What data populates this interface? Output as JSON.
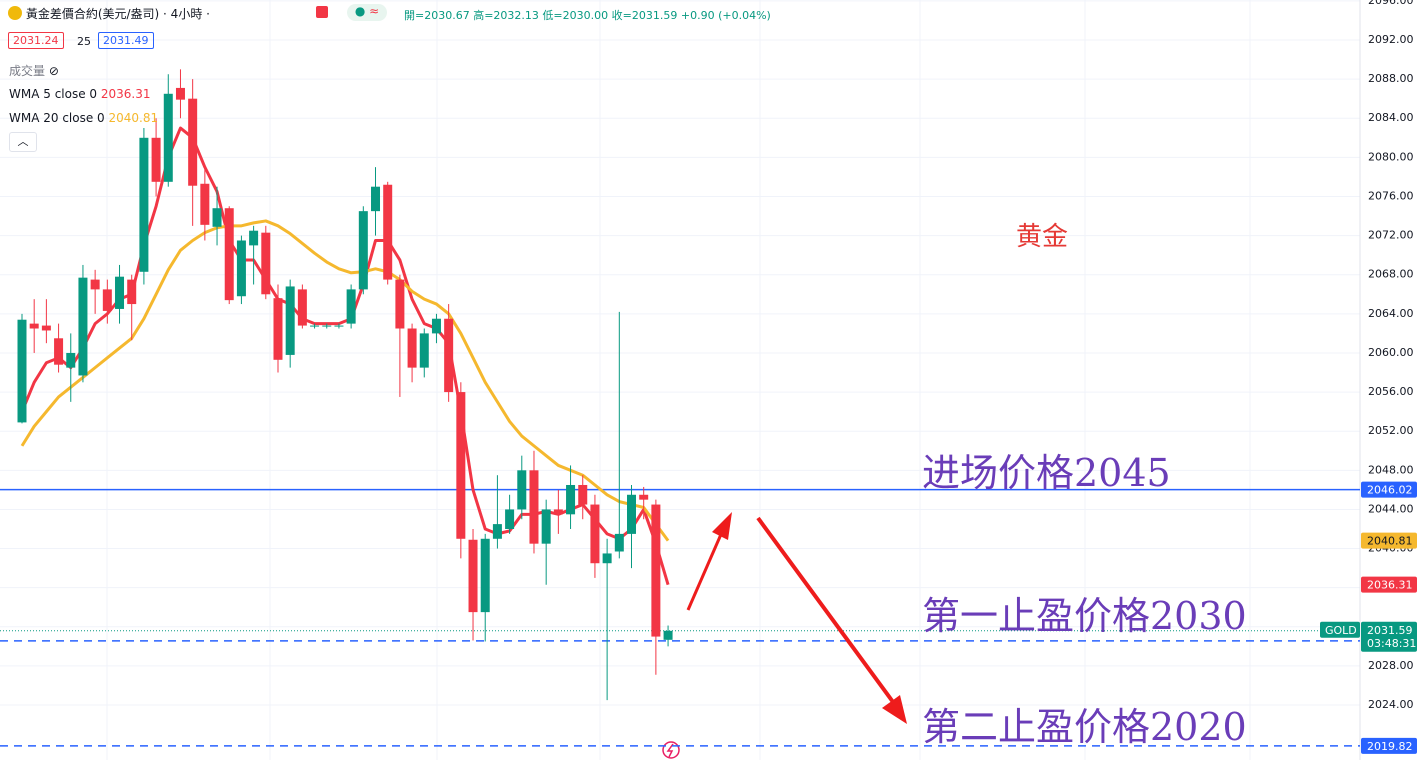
{
  "header": {
    "symbol": "黃金差價合約(美元/盎司) · 4小時 ·",
    "ohlc": [
      "開=2030.67",
      "高=2032.13",
      "低=2030.00",
      "收=2031.59",
      "+0.90 (+0.04%)"
    ],
    "bid": "2031.24",
    "spread": "25",
    "ask": "2031.49",
    "volume": "成交量"
  },
  "chart_data": {
    "type": "candlestick",
    "open": [
      2052.9,
      2063,
      2062.8,
      2061.5,
      2058.5,
      2057.7,
      2067.5,
      2066.5,
      2064.5,
      2067.5,
      2068.3,
      2082,
      2077.5,
      2087.1,
      2086,
      2077.3,
      2072.9,
      2074.8,
      2065.8,
      2071,
      2072.3,
      2065.6,
      2059.8,
      2066.5,
      2062.8,
      2062.8,
      2062.8,
      2063,
      2066.5,
      2074.5,
      2077.2,
      2067.5,
      2062.5,
      2058.5,
      2062,
      2063.5,
      2056,
      2040.9,
      2033.5,
      2041,
      2042,
      2044,
      2048,
      2040.5,
      2044,
      2043.5,
      2046.5,
      2044.5,
      2038.5,
      2039.7,
      2041.5,
      2045.5,
      2044.5,
      2030.67
    ],
    "high": [
      2064,
      2065.5,
      2065.5,
      2063,
      2062,
      2069,
      2068.5,
      2067.5,
      2069,
      2068,
      2083,
      2084,
      2088.5,
      2089,
      2088,
      2079,
      2077,
      2075,
      2072,
      2073,
      2073,
      2067,
      2067.5,
      2067,
      2063,
      2063,
      2063,
      2067,
      2075,
      2079,
      2077.5,
      2068,
      2063,
      2062.5,
      2064,
      2065,
      2057,
      2042,
      2041.5,
      2047.5,
      2045.5,
      2049.5,
      2050,
      2045,
      2046,
      2048.5,
      2047.5,
      2045.5,
      2041,
      2064.2,
      2046.5,
      2046.3,
      2045,
      2032.13
    ],
    "low": [
      2052.8,
      2060,
      2061,
      2058,
      2055,
      2057,
      2064,
      2063,
      2063,
      2061.3,
      2067,
      2076,
      2077,
      2084,
      2073,
      2071.5,
      2071,
      2065,
      2065,
      2067,
      2065.5,
      2058,
      2058.5,
      2062.5,
      2062.5,
      2062.5,
      2062.5,
      2062.5,
      2066,
      2072,
      2067,
      2055.5,
      2057,
      2057.5,
      2061,
      2055,
      2039,
      2030.6,
      2030.5,
      2040,
      2041.5,
      2043,
      2039.5,
      2036.3,
      2041.5,
      2042,
      2043,
      2037,
      2024.5,
      2039,
      2038,
      2043,
      2027.1,
      2030
    ],
    "close": [
      2063.4,
      2062.5,
      2062.3,
      2058.8,
      2060,
      2067.7,
      2066.5,
      2064.3,
      2067.8,
      2065,
      2082,
      2077.5,
      2086.5,
      2085.9,
      2077.1,
      2073.1,
      2074.8,
      2065.4,
      2071.5,
      2072.5,
      2066,
      2059.3,
      2066.8,
      2062.8,
      2062.8,
      2062.8,
      2062.8,
      2066.5,
      2074.5,
      2077,
      2067.5,
      2062.5,
      2058.5,
      2062,
      2063.5,
      2056,
      2041,
      2033.5,
      2041,
      2042.5,
      2044,
      2048,
      2040.5,
      2044,
      2043.5,
      2046.5,
      2044.5,
      2038.5,
      2039.5,
      2041.5,
      2045.5,
      2045,
      2031,
      2031.59
    ],
    "up_color": "#089981",
    "down_color": "#f23645",
    "lines": [
      {
        "name": "WMA 5 close 0",
        "color": "#f23645",
        "values": [
          2054,
          2057,
          2059,
          2059.5,
          2058.5,
          2060.5,
          2063,
          2064,
          2065.5,
          2066,
          2071,
          2075,
          2080,
          2083,
          2082,
          2079,
          2076.5,
          2071.5,
          2069.5,
          2069.5,
          2067.5,
          2065.5,
          2065,
          2063.5,
          2063,
          2063,
          2063,
          2063.5,
          2067,
          2071.5,
          2071.5,
          2069.5,
          2065.5,
          2063,
          2062.5,
          2061,
          2054,
          2046,
          2042,
          2041.5,
          2041.8,
          2043.5,
          2043.5,
          2043.8,
          2043.5,
          2044,
          2044.5,
          2043,
          2041.5,
          2041,
          2042,
          2044,
          2040.5,
          2036.31
        ]
      },
      {
        "name": "WMA 20 close 0",
        "color": "#f5b82e",
        "values": [
          2050.5,
          2052.5,
          2054,
          2055.5,
          2056.5,
          2057.5,
          2058.5,
          2059.5,
          2060.5,
          2061.5,
          2063.5,
          2066,
          2068.5,
          2070.5,
          2071.5,
          2072.3,
          2072.8,
          2073,
          2073,
          2073.3,
          2073.5,
          2073,
          2072.2,
          2071.2,
          2070.2,
          2069.3,
          2068.6,
          2068.2,
          2068.3,
          2068.6,
          2068.3,
          2067.5,
          2066.3,
          2065.5,
          2065,
          2064,
          2062,
          2059.5,
          2057,
          2055,
          2053,
          2051.5,
          2050.5,
          2049.5,
          2048.5,
          2048,
          2047.5,
          2046.5,
          2045.5,
          2044.8,
          2044.5,
          2044.2,
          2042.5,
          2040.81
        ]
      }
    ],
    "hlines": [
      {
        "value": 2046.02,
        "color": "#2962ff",
        "style": "solid"
      },
      {
        "value": 2030.56,
        "color": "#2962ff",
        "style": "dashed"
      },
      {
        "value": 2019.82,
        "color": "#2962ff",
        "style": "dashed"
      }
    ],
    "symbol_tag": "GOLD",
    "countdown": "03:48:31",
    "ylim": [
      2018.38,
      2096.09
    ],
    "yticks": [
      {
        "value": 2024,
        "label": "2024.00"
      },
      {
        "value": 2028,
        "label": "2028.00"
      },
      {
        "value": 2032,
        "label": "2032.00"
      },
      {
        "value": 2036,
        "label": "2036.00"
      },
      {
        "value": 2040,
        "label": "2040.00"
      },
      {
        "value": 2044,
        "label": "2044.00"
      },
      {
        "value": 2048,
        "label": "2048.00"
      },
      {
        "value": 2052,
        "label": "2052.00"
      },
      {
        "value": 2056,
        "label": "2056.00"
      },
      {
        "value": 2060,
        "label": "2060.00"
      },
      {
        "value": 2064,
        "label": "2064.00"
      },
      {
        "value": 2068,
        "label": "2068.00"
      },
      {
        "value": 2072,
        "label": "2072.00"
      },
      {
        "value": 2076,
        "label": "2076.00"
      },
      {
        "value": 2080,
        "label": "2080.00"
      },
      {
        "value": 2084,
        "label": "2084.00"
      },
      {
        "value": 2088,
        "label": "2088.00"
      },
      {
        "value": 2092,
        "label": "2092.00"
      },
      {
        "value": 2096,
        "label": "2096.00"
      }
    ],
    "grid": true,
    "annotations": [
      {
        "text": "黄金",
        "color": "#e53935"
      },
      {
        "text": "进场价格2045",
        "color": "#6a3db8"
      },
      {
        "text": "第一止盈价格2030",
        "color": "#6a3db8"
      },
      {
        "text": "第二止盈价格2020",
        "color": "#6a3db8"
      }
    ]
  }
}
